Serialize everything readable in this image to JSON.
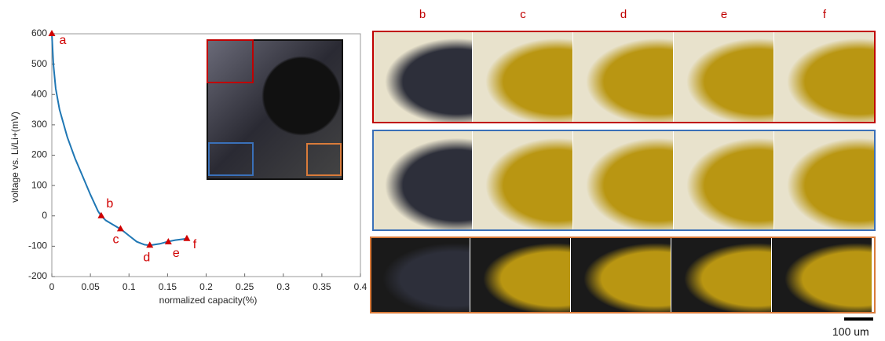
{
  "chart_data": {
    "type": "line",
    "xlabel": "normalized capacity(%)",
    "ylabel": "voltage vs. Li/Li+(mV)",
    "x": [
      0,
      0.002,
      0.005,
      0.01,
      0.02,
      0.03,
      0.04,
      0.05,
      0.06,
      0.064,
      0.07,
      0.08,
      0.09,
      0.1,
      0.11,
      0.12,
      0.127,
      0.14,
      0.15,
      0.16,
      0.175
    ],
    "values": [
      600,
      500,
      420,
      350,
      260,
      190,
      130,
      70,
      15,
      0,
      -15,
      -30,
      -45,
      -65,
      -85,
      -95,
      -97,
      -92,
      -85,
      -80,
      -75
    ],
    "color": "#1f77b4",
    "markers": {
      "x": [
        0,
        0.064,
        0.089,
        0.127,
        0.151,
        0.175
      ],
      "values": [
        600,
        0,
        -43,
        -97,
        -86,
        -75
      ],
      "labels": [
        "a",
        "b",
        "c",
        "d",
        "e",
        "f"
      ],
      "color": "#d00000"
    },
    "xlim": [
      0,
      0.4
    ],
    "xticks": [
      0,
      0.05,
      0.1,
      0.15,
      0.2,
      0.25,
      0.3,
      0.35,
      0.4
    ],
    "ylim": [
      -200,
      600
    ],
    "yticks": [
      -200,
      -100,
      0,
      100,
      200,
      300,
      400,
      500,
      600
    ],
    "grid": false
  },
  "panels": {
    "columns": [
      "b",
      "c",
      "d",
      "e",
      "f"
    ],
    "label_color": "#c00000",
    "row_colors": [
      "#c00000",
      "#3a70b8",
      "#d97b3a"
    ]
  },
  "scale_bar": "100 um"
}
